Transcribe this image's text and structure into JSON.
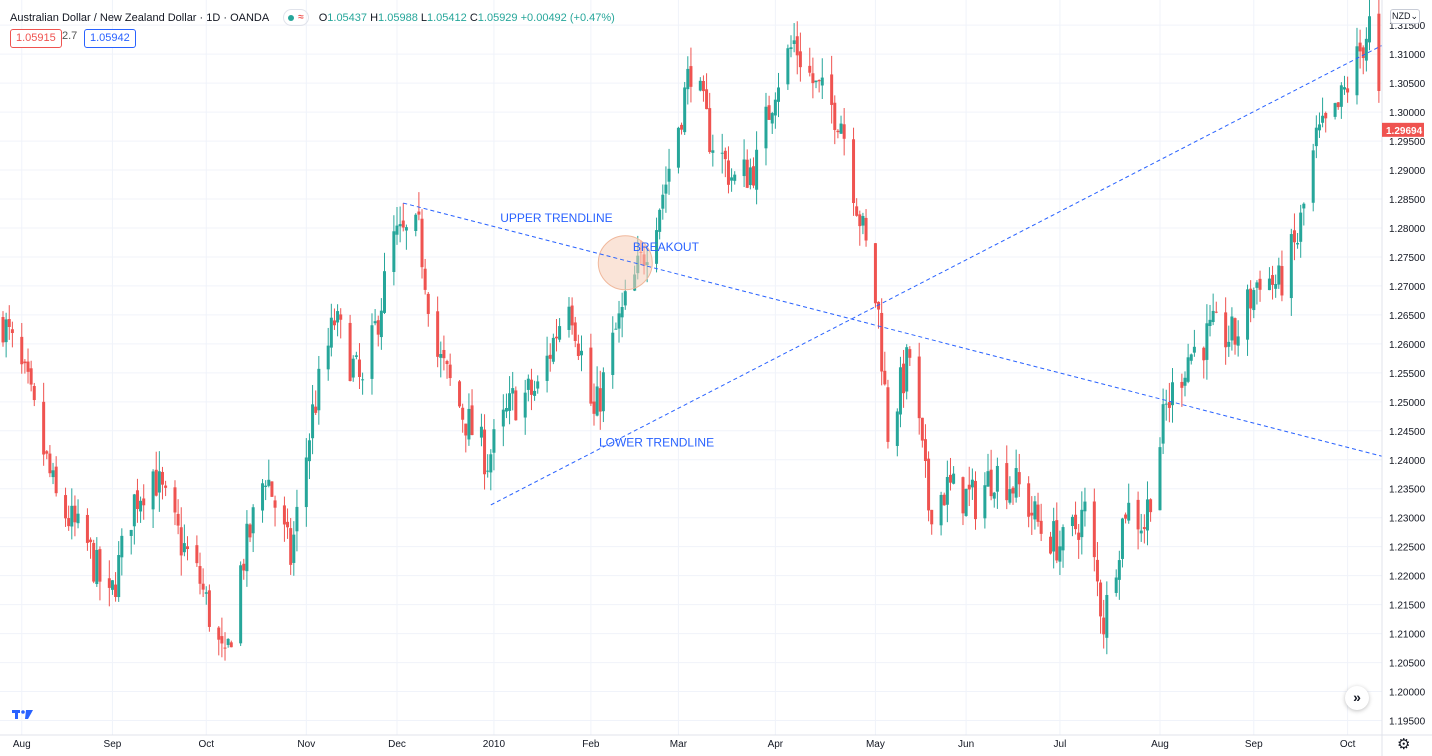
{
  "header": {
    "symbol": "Australian Dollar / New Zealand Dollar · 1D · OANDA",
    "ohlc": {
      "o_label": "O",
      "o": "1.05437",
      "h_label": "H",
      "h": "1.05988",
      "l_label": "L",
      "l": "1.05412",
      "c_label": "C",
      "c": "1.05929",
      "change": "+0.00492 (+0.47%)"
    },
    "bid": "1.05915",
    "spread": "2.7",
    "ask": "1.05942",
    "currency": "NZD",
    "currency_caret": "⌄"
  },
  "icons": {
    "logo": "tradingview-logo-icon",
    "scroll": "double-chevron-right-icon",
    "settings": "gear-icon"
  },
  "colors": {
    "up": "#26a69a",
    "down": "#ef5350",
    "trend": "#2962ff",
    "highlight": "#f5cdb8",
    "last_price": "#ef5350",
    "grid": "#f0f3fa"
  },
  "chart_data": {
    "type": "candlestick",
    "title": "",
    "xlabel": "",
    "ylabel": "",
    "ylim": [
      1.1925,
      1.319
    ],
    "y_ticks": [
      "1.31500",
      "1.31000",
      "1.30500",
      "1.30000",
      "1.29500",
      "1.29000",
      "1.28500",
      "1.28000",
      "1.27500",
      "1.27000",
      "1.26500",
      "1.26000",
      "1.25500",
      "1.25000",
      "1.24500",
      "1.24000",
      "1.23500",
      "1.23000",
      "1.22500",
      "1.22000",
      "1.21500",
      "1.21000",
      "1.20500",
      "1.20000",
      "1.19500"
    ],
    "x_ticks": [
      {
        "label": "Aug",
        "date": "2009-08-03"
      },
      {
        "label": "Sep",
        "date": "2009-09-01"
      },
      {
        "label": "Oct",
        "date": "2009-10-01"
      },
      {
        "label": "Nov",
        "date": "2009-11-02"
      },
      {
        "label": "Dec",
        "date": "2009-12-01"
      },
      {
        "label": "2010",
        "date": "2010-01-01"
      },
      {
        "label": "Feb",
        "date": "2010-02-01"
      },
      {
        "label": "Mar",
        "date": "2010-03-01"
      },
      {
        "label": "Apr",
        "date": "2010-04-01"
      },
      {
        "label": "May",
        "date": "2010-05-03"
      },
      {
        "label": "Jun",
        "date": "2010-06-01"
      },
      {
        "label": "Jul",
        "date": "2010-07-01"
      },
      {
        "label": "Aug",
        "date": "2010-08-02"
      },
      {
        "label": "Sep",
        "date": "2010-09-01"
      },
      {
        "label": "Oct",
        "date": "2010-10-01"
      }
    ],
    "x_range": [
      "2009-07-28",
      "2010-10-12"
    ],
    "close_path": [
      {
        "date": "2009-07-28",
        "close": 1.264
      },
      {
        "date": "2009-08-05",
        "close": 1.252
      },
      {
        "date": "2009-08-14",
        "close": 1.233
      },
      {
        "date": "2009-08-24",
        "close": 1.225
      },
      {
        "date": "2009-08-31",
        "close": 1.215
      },
      {
        "date": "2009-09-08",
        "close": 1.233
      },
      {
        "date": "2009-09-14",
        "close": 1.238
      },
      {
        "date": "2009-09-21",
        "close": 1.228
      },
      {
        "date": "2009-09-29",
        "close": 1.219
      },
      {
        "date": "2009-10-07",
        "close": 1.204
      },
      {
        "date": "2009-10-12",
        "close": 1.221
      },
      {
        "date": "2009-10-20",
        "close": 1.238
      },
      {
        "date": "2009-10-28",
        "close": 1.223
      },
      {
        "date": "2009-11-04",
        "close": 1.248
      },
      {
        "date": "2009-11-11",
        "close": 1.264
      },
      {
        "date": "2009-11-20",
        "close": 1.252
      },
      {
        "date": "2009-11-30",
        "close": 1.278
      },
      {
        "date": "2009-12-08",
        "close": 1.279
      },
      {
        "date": "2009-12-14",
        "close": 1.258
      },
      {
        "date": "2009-12-22",
        "close": 1.248
      },
      {
        "date": "2009-12-30",
        "close": 1.24
      },
      {
        "date": "2010-01-07",
        "close": 1.25
      },
      {
        "date": "2010-01-15",
        "close": 1.252
      },
      {
        "date": "2010-01-25",
        "close": 1.269
      },
      {
        "date": "2010-02-02",
        "close": 1.247
      },
      {
        "date": "2010-02-09",
        "close": 1.262
      },
      {
        "date": "2010-02-17",
        "close": 1.274
      },
      {
        "date": "2010-02-25",
        "close": 1.288
      },
      {
        "date": "2010-03-05",
        "close": 1.308
      },
      {
        "date": "2010-03-11",
        "close": 1.296
      },
      {
        "date": "2010-03-19",
        "close": 1.288
      },
      {
        "date": "2010-03-26",
        "close": 1.291
      },
      {
        "date": "2010-04-01",
        "close": 1.305
      },
      {
        "date": "2010-04-07",
        "close": 1.312
      },
      {
        "date": "2010-04-14",
        "close": 1.304
      },
      {
        "date": "2010-04-22",
        "close": 1.299
      },
      {
        "date": "2010-04-28",
        "close": 1.282
      },
      {
        "date": "2010-05-04",
        "close": 1.265
      },
      {
        "date": "2010-05-07",
        "close": 1.245
      },
      {
        "date": "2010-05-14",
        "close": 1.258
      },
      {
        "date": "2010-05-20",
        "close": 1.232
      },
      {
        "date": "2010-05-26",
        "close": 1.235
      },
      {
        "date": "2010-06-04",
        "close": 1.233
      },
      {
        "date": "2010-06-10",
        "close": 1.238
      },
      {
        "date": "2010-06-18",
        "close": 1.235
      },
      {
        "date": "2010-06-25",
        "close": 1.228
      },
      {
        "date": "2010-07-02",
        "close": 1.225
      },
      {
        "date": "2010-07-09",
        "close": 1.231
      },
      {
        "date": "2010-07-15",
        "close": 1.212
      },
      {
        "date": "2010-07-22",
        "close": 1.232
      },
      {
        "date": "2010-07-28",
        "close": 1.229
      },
      {
        "date": "2010-08-04",
        "close": 1.249
      },
      {
        "date": "2010-08-11",
        "close": 1.258
      },
      {
        "date": "2010-08-19",
        "close": 1.262
      },
      {
        "date": "2010-08-26",
        "close": 1.261
      },
      {
        "date": "2010-09-03",
        "close": 1.272
      },
      {
        "date": "2010-09-09",
        "close": 1.27
      },
      {
        "date": "2010-09-15",
        "close": 1.278
      },
      {
        "date": "2010-09-21",
        "close": 1.295
      },
      {
        "date": "2010-09-27",
        "close": 1.299
      },
      {
        "date": "2010-10-04",
        "close": 1.309
      },
      {
        "date": "2010-10-08",
        "close": 1.315
      },
      {
        "date": "2010-10-12",
        "close": 1.2969
      }
    ],
    "last_price": "1.29694",
    "trendlines": [
      {
        "name": "upper",
        "from": {
          "date": "2009-12-03",
          "price": 1.2843
        },
        "to": {
          "date": "2010-10-12",
          "price": 1.2406
        }
      },
      {
        "name": "lower",
        "from": {
          "date": "2009-12-31",
          "price": 1.2322
        },
        "to": {
          "date": "2010-10-12",
          "price": 1.3115
        }
      }
    ],
    "annotations": [
      {
        "text": "UPPER TRENDLINE",
        "date": "2010-01-21",
        "price": 1.281
      },
      {
        "text": "BREAKOUT",
        "date": "2010-02-25",
        "price": 1.276
      },
      {
        "text": "LOWER TRENDLINE",
        "date": "2010-02-22",
        "price": 1.2423
      }
    ],
    "highlight": {
      "date": "2010-02-12",
      "price": 1.274
    }
  }
}
